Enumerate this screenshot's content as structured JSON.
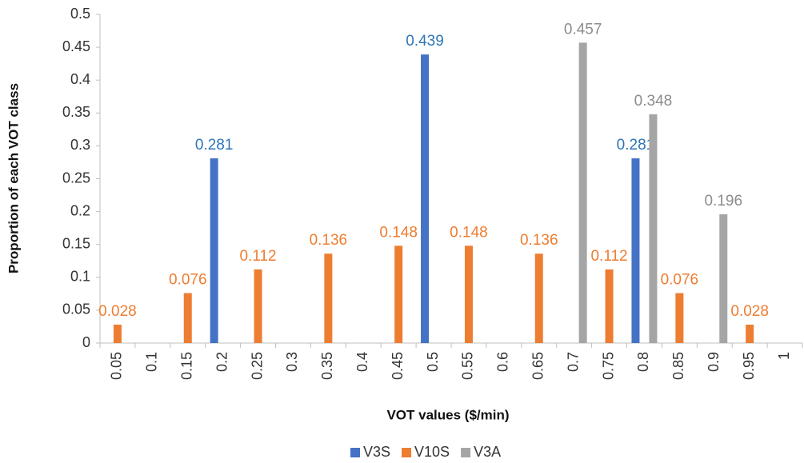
{
  "chart_data": {
    "type": "bar",
    "xlabel": "VOT values ($/min)",
    "ylabel": "Proportion of each VOT class",
    "categories": [
      "0.05",
      "0.1",
      "0.15",
      "0.2",
      "0.25",
      "0.3",
      "0.35",
      "0.4",
      "0.45",
      "0.5",
      "0.55",
      "0.6",
      "0.65",
      "0.7",
      "0.75",
      "0.8",
      "0.85",
      "0.9",
      "0.95",
      "1"
    ],
    "series": [
      {
        "name": "V3S",
        "color": "#4472c4",
        "label_color": "#2e75b6",
        "values": [
          null,
          null,
          null,
          0.281,
          null,
          null,
          null,
          null,
          null,
          0.439,
          null,
          null,
          null,
          null,
          null,
          0.281,
          null,
          null,
          null,
          null
        ]
      },
      {
        "name": "V10S",
        "color": "#ed7d31",
        "label_color": "#ed7d31",
        "values": [
          0.028,
          null,
          0.076,
          null,
          0.112,
          null,
          0.136,
          null,
          0.148,
          null,
          0.148,
          null,
          0.136,
          null,
          0.112,
          null,
          0.076,
          null,
          0.028,
          null
        ]
      },
      {
        "name": "V3A",
        "color": "#a5a5a5",
        "label_color": "#8c8c8c",
        "values": [
          null,
          null,
          null,
          null,
          null,
          null,
          null,
          null,
          null,
          null,
          null,
          null,
          null,
          0.457,
          null,
          0.348,
          null,
          0.196,
          null,
          null
        ]
      }
    ],
    "ylim": [
      0,
      0.5
    ],
    "yticks": [
      0,
      0.05,
      0.1,
      0.15,
      0.2,
      0.25,
      0.3,
      0.35,
      0.4,
      0.45,
      0.5
    ],
    "legend": "bottom",
    "grid": false
  }
}
